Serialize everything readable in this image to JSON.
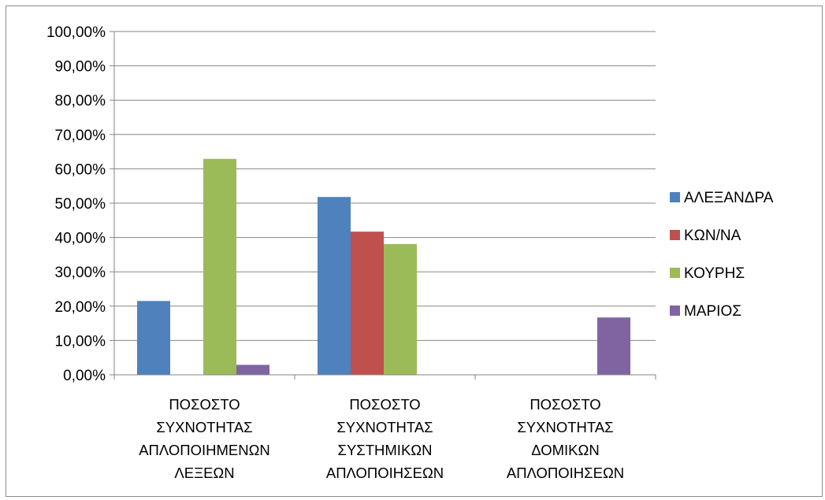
{
  "chart_data": {
    "type": "bar",
    "title": "",
    "xlabel": "",
    "ylabel": "",
    "ylim": [
      0,
      100
    ],
    "y_ticks": [
      "0,00%",
      "10,00%",
      "20,00%",
      "30,00%",
      "40,00%",
      "50,00%",
      "60,00%",
      "70,00%",
      "80,00%",
      "90,00%",
      "100,00%"
    ],
    "grid": true,
    "legend_position": "right",
    "categories": [
      [
        "ΠΟΣΟΣΤΟ",
        "ΣΥΧΝΟΤΗΤΑΣ",
        "ΑΠΛΟΠΟΙΗΜΕΝΩΝ",
        "ΛΕΞΕΩΝ"
      ],
      [
        "ΠΟΣΟΣΤΟ",
        "ΣΥΧΝΟΤΗΤΑΣ",
        "ΣΥΣΤΗΜΙΚΩΝ",
        "ΑΠΛΟΠΟΙΗΣΕΩΝ"
      ],
      [
        "ΠΟΣΟΣΤΟ",
        "ΣΥΧΝΟΤΗΤΑΣ",
        "ΔΟΜΙΚΩΝ",
        "ΑΠΛΟΠΟΙΗΣΕΩΝ"
      ]
    ],
    "series": [
      {
        "name": "ΑΛΕΞΑΝΔΡΑ",
        "color": "#4f81bd",
        "values": [
          21.5,
          51.8,
          0
        ]
      },
      {
        "name": "ΚΩΝ/ΝΑ",
        "color": "#c0504d",
        "values": [
          0,
          41.7,
          0
        ]
      },
      {
        "name": "ΚΟΥΡΗΣ",
        "color": "#9bbb59",
        "values": [
          62.9,
          38.1,
          0
        ]
      },
      {
        "name": "ΜΑΡΙΟΣ",
        "color": "#8064a2",
        "values": [
          2.9,
          0,
          16.7
        ]
      }
    ]
  }
}
